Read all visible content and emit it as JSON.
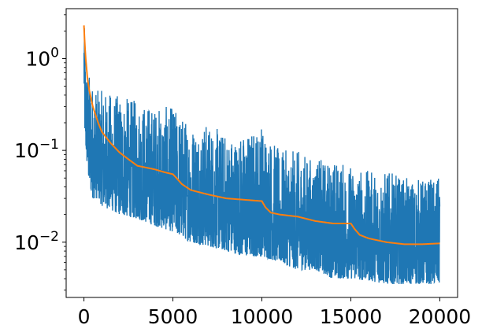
{
  "chart_data": {
    "type": "line",
    "title": "",
    "xlabel": "",
    "ylabel": "",
    "xlim": [
      -1000,
      21000
    ],
    "ylim": [
      0.0025,
      3.5
    ],
    "yscale": "log",
    "grid": false,
    "legend": "none",
    "x_ticks": [
      0,
      5000,
      10000,
      15000,
      20000
    ],
    "x_tick_labels": [
      "0",
      "5000",
      "10000",
      "15000",
      "20000"
    ],
    "y_ticks": [
      0.01,
      0.1,
      1
    ],
    "y_tick_labels": [
      {
        "base": "10",
        "exp": "−2"
      },
      {
        "base": "10",
        "exp": "−1"
      },
      {
        "base": "10",
        "exp": "0"
      }
    ],
    "series": [
      {
        "role": "raw",
        "color": "#1f77b4",
        "x_range": [
          0,
          20000
        ],
        "envelope": {
          "x": [
            0,
            50,
            100,
            200,
            300,
            500,
            800,
            1000,
            2000,
            3000,
            4000,
            5000,
            6000,
            7000,
            8000,
            9000,
            10000,
            11000,
            12000,
            13000,
            14000,
            15000,
            16000,
            17000,
            18000,
            19000,
            20000
          ],
          "upper": [
            2.6,
            1.8,
            1.0,
            0.8,
            0.7,
            0.55,
            0.45,
            0.45,
            0.4,
            0.35,
            0.3,
            0.3,
            0.2,
            0.2,
            0.15,
            0.15,
            0.2,
            0.1,
            0.1,
            0.08,
            0.08,
            0.07,
            0.06,
            0.06,
            0.05,
            0.05,
            0.05
          ],
          "lower": [
            0.5,
            0.15,
            0.1,
            0.06,
            0.04,
            0.03,
            0.03,
            0.025,
            0.02,
            0.018,
            0.015,
            0.013,
            0.01,
            0.009,
            0.008,
            0.007,
            0.007,
            0.006,
            0.005,
            0.005,
            0.004,
            0.004,
            0.0038,
            0.0035,
            0.0035,
            0.0035,
            0.0035
          ]
        }
      },
      {
        "role": "smoothed",
        "color": "#ff7f0e",
        "x": [
          0,
          50,
          100,
          200,
          300,
          500,
          800,
          1000,
          1500,
          2000,
          2500,
          3000,
          4000,
          4500,
          5000,
          5200,
          5500,
          6000,
          7000,
          8000,
          9000,
          10000,
          10200,
          10500,
          11000,
          12000,
          13000,
          14000,
          15000,
          15200,
          15500,
          16000,
          17000,
          18000,
          19000,
          20000
        ],
        "y": [
          2.3,
          1.4,
          1.0,
          0.6,
          0.45,
          0.3,
          0.2,
          0.16,
          0.12,
          0.095,
          0.08,
          0.068,
          0.062,
          0.058,
          0.055,
          0.05,
          0.043,
          0.037,
          0.033,
          0.03,
          0.029,
          0.028,
          0.024,
          0.021,
          0.02,
          0.019,
          0.017,
          0.016,
          0.016,
          0.014,
          0.012,
          0.011,
          0.01,
          0.0095,
          0.0095,
          0.0097
        ]
      }
    ]
  }
}
